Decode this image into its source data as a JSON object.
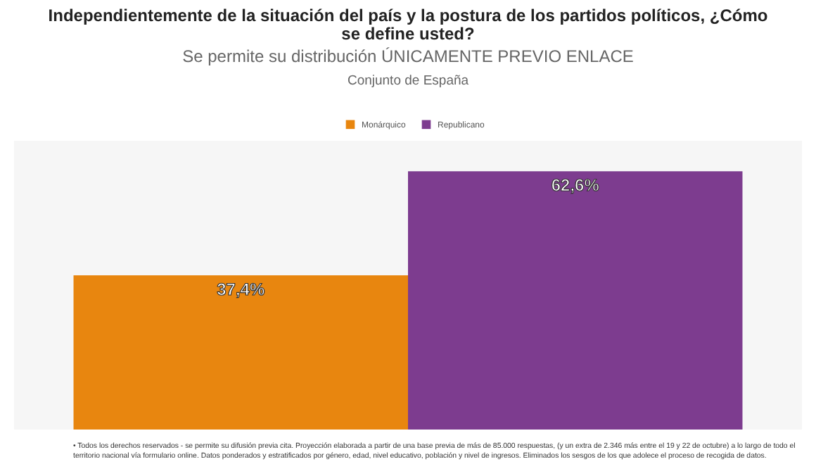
{
  "chart_data": {
    "type": "bar",
    "title": "Independientemente de la situación del país y la postura de los partidos políticos, ¿Cómo se define usted?",
    "subtitle": "Se permite su distribución ÚNICAMENTE PREVIO ENLACE",
    "annotations": [
      "Conjunto de España",
      "• Todos los derechos reservados - se permite su difusión previa cita. Proyección elaborada a partir de una base previa de más de 85.000 respuestas, (y un extra de 2.346 más entre el 19 y 22 de octubre) a lo largo de todo el territorio nacional vía formulario online. Datos ponderados y estratificados por género, edad, nivel educativo, población y nivel de ingresos. Eliminados los sesgos de los que adolece el proceso de recogida de datos."
    ],
    "categories": [
      null
    ],
    "series": [
      {
        "name": "Monárquico",
        "color": "#e8860f",
        "values": [
          37.4
        ],
        "value_labels": [
          "37,4%"
        ]
      },
      {
        "name": "Republicano",
        "color": "#7d3c8f",
        "values": [
          62.6
        ],
        "value_labels": [
          "62,6%"
        ]
      }
    ],
    "ylim": [
      0,
      70
    ],
    "legend": "top"
  }
}
